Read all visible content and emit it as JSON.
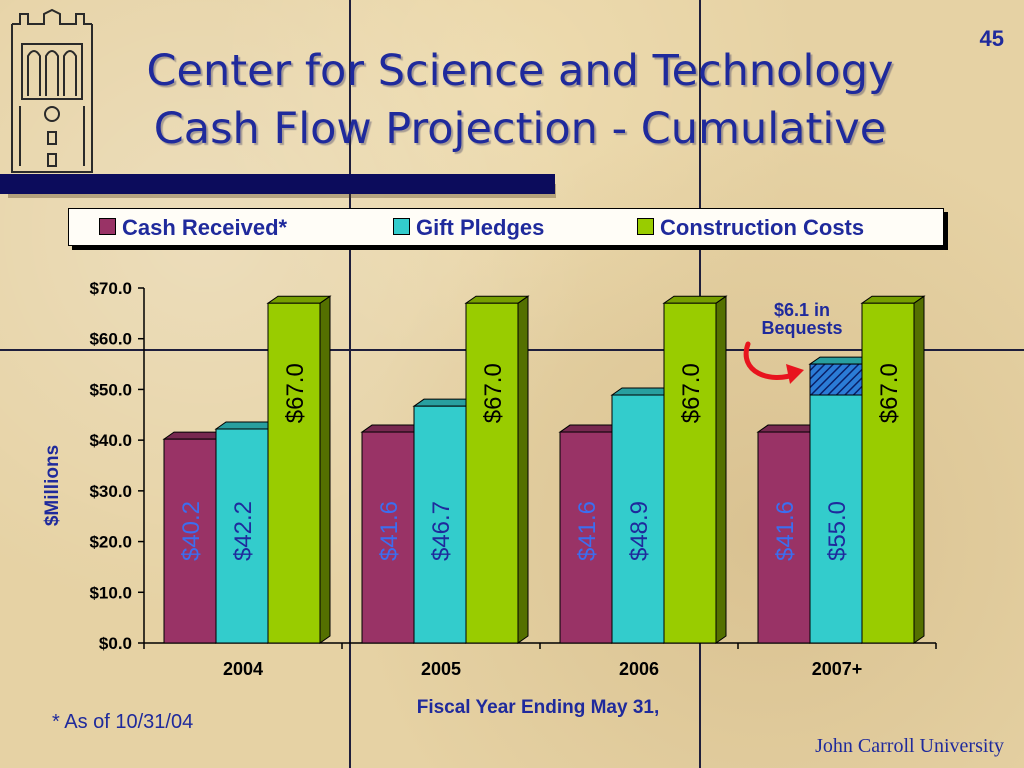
{
  "slide": {
    "number": "45",
    "title_line1": "Center for Science and Technology",
    "title_line2": "Cash Flow Projection - Cumulative",
    "footnote": "* As of 10/31/04",
    "university": "John Carroll University"
  },
  "chart_data": {
    "type": "bar",
    "categories": [
      "2004",
      "2005",
      "2006",
      "2007+"
    ],
    "series": [
      {
        "name": "Cash Received*",
        "color": "#993366",
        "values": [
          40.2,
          41.6,
          41.6,
          41.6
        ],
        "labels": [
          "$40.2",
          "$41.6",
          "$41.6",
          "$41.6"
        ],
        "label_color": "#3b6ef0"
      },
      {
        "name": "Gift Pledges",
        "color": "#33cccc",
        "values": [
          42.2,
          46.7,
          48.9,
          55.0
        ],
        "labels": [
          "$42.2",
          "$46.7",
          "$48.9",
          "$55.0"
        ],
        "label_color": "#1f2a9c"
      },
      {
        "name": "Construction Costs",
        "color": "#99cc00",
        "values": [
          67.0,
          67.0,
          67.0,
          67.0
        ],
        "labels": [
          "$67.0",
          "$67.0",
          "$67.0",
          "$67.0"
        ],
        "label_color": "#000000"
      }
    ],
    "bequests": {
      "category": "2007+",
      "base": 48.9,
      "top": 55.0,
      "label_line1": "$6.1 in",
      "label_line2": "Bequests"
    },
    "ylabel": "$Millions",
    "xlabel": "Fiscal Year Ending May 31,",
    "ylim": [
      0,
      70
    ],
    "yticks": [
      "$0.0",
      "$10.0",
      "$20.0",
      "$30.0",
      "$40.0",
      "$50.0",
      "$60.0",
      "$70.0"
    ],
    "grid": false,
    "legend_position": "top"
  }
}
